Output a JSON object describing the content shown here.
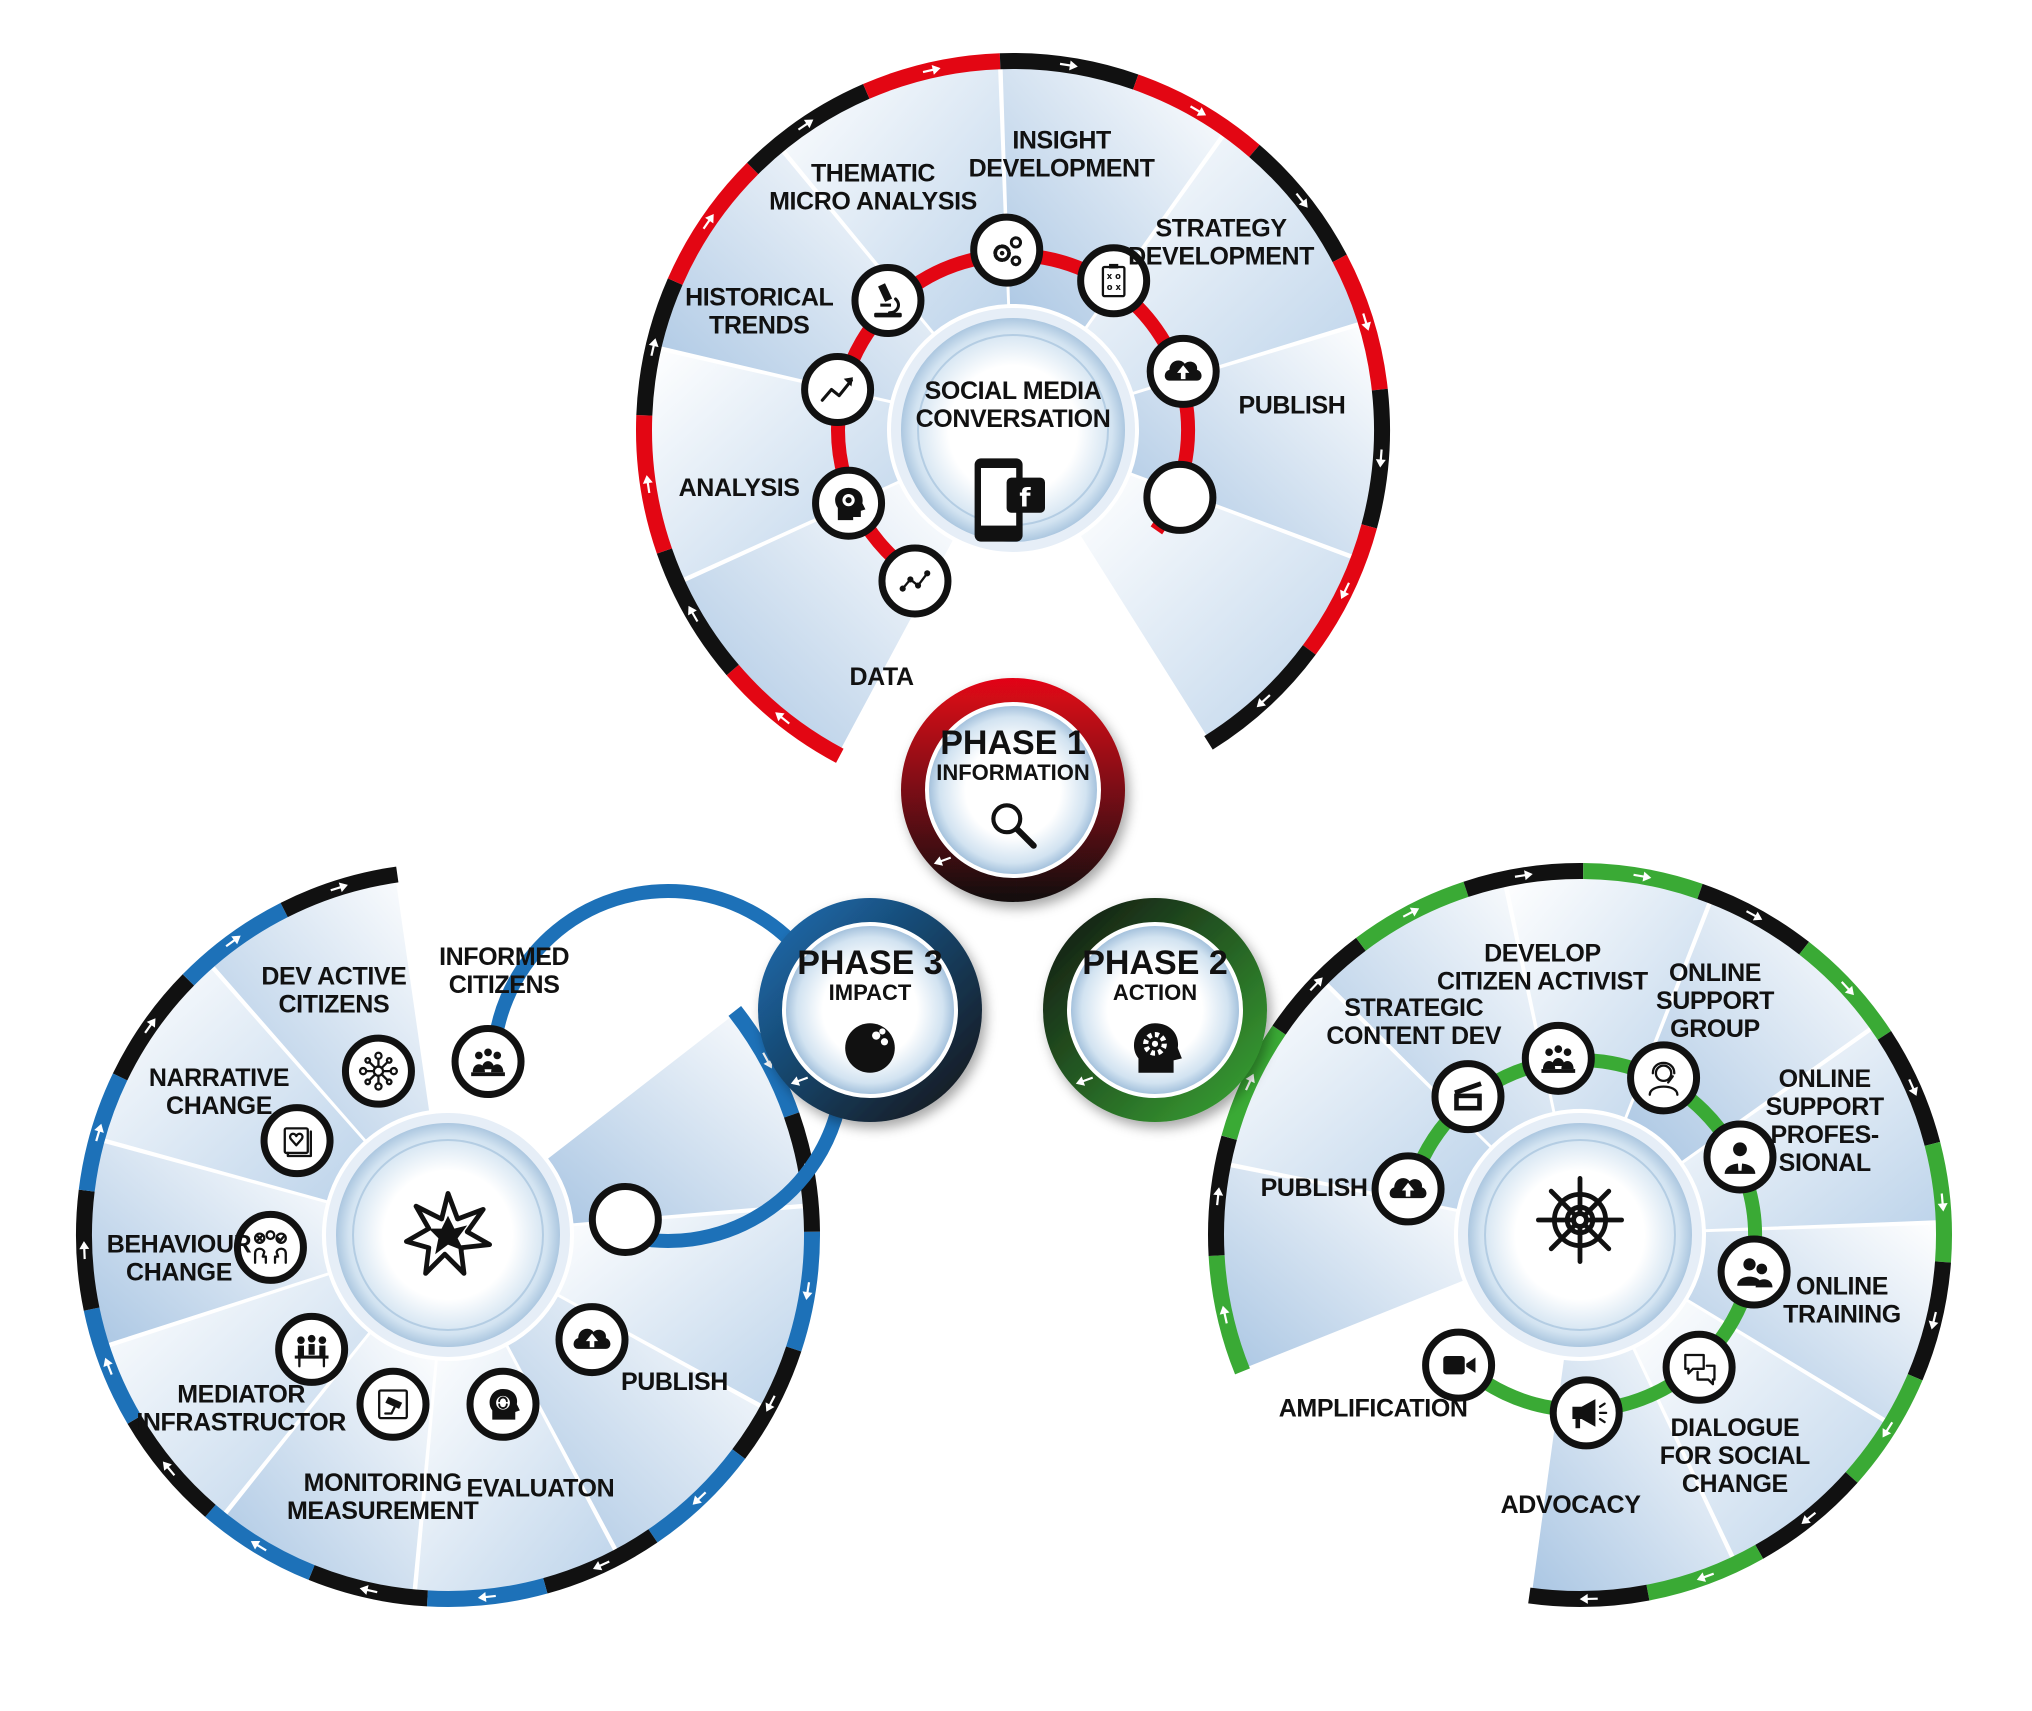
{
  "phases": [
    {
      "title": "PHASE 1",
      "subtitle": "INFORMATION",
      "icon": "magnifier-icon"
    },
    {
      "title": "PHASE 2",
      "subtitle": "ACTION",
      "icon": "head-gear-icon"
    },
    {
      "title": "PHASE 3",
      "subtitle": "IMPACT",
      "icon": "bowling-ball-icon"
    }
  ],
  "cycles": {
    "information": {
      "colors": {
        "accent": "#e30613",
        "dark": "#111111"
      },
      "center": {
        "lines": [
          "SOCIAL MEDIA",
          "CONVERSATION"
        ],
        "icon": "smartphone-facebook-icon"
      },
      "steps": [
        {
          "lines": [
            "DATA"
          ],
          "icon": "data-line-icon"
        },
        {
          "lines": [
            "ANALYSIS"
          ],
          "icon": "head-brain-icon"
        },
        {
          "lines": [
            "HISTORICAL",
            "TRENDS"
          ],
          "icon": "trend-arrow-icon"
        },
        {
          "lines": [
            "THEMATIC",
            "MICRO ANALYSIS"
          ],
          "icon": "microscope-icon"
        },
        {
          "lines": [
            "INSIGHT",
            "DEVELOPMENT"
          ],
          "icon": "gears-icon"
        },
        {
          "lines": [
            "STRATEGY",
            "DEVELOPMENT"
          ],
          "icon": "strategy-board-icon"
        },
        {
          "lines": [
            "PUBLISH"
          ],
          "icon": "cloud-upload-icon"
        },
        {
          "lines": [],
          "icon": "empty-circle-icon"
        }
      ]
    },
    "action": {
      "colors": {
        "accent": "#3aaa35",
        "dark": "#111111"
      },
      "center": {
        "lines": [],
        "icon": "ship-wheel-icon"
      },
      "steps": [
        {
          "lines": [
            "PUBLISH"
          ],
          "icon": "cloud-upload-icon"
        },
        {
          "lines": [
            "STRATEGIC",
            "CONTENT DEV"
          ],
          "icon": "clapperboard-icon"
        },
        {
          "lines": [
            "DEVELOP",
            "CITIZEN ACTIVIST"
          ],
          "icon": "group-icon"
        },
        {
          "lines": [
            "ONLINE",
            "SUPPORT",
            "GROUP"
          ],
          "icon": "headset-person-icon"
        },
        {
          "lines": [
            "ONLINE",
            "SUPPORT",
            "PROFES-",
            "SIONAL"
          ],
          "icon": "businessman-icon"
        },
        {
          "lines": [
            "ONLINE",
            "TRAINING"
          ],
          "icon": "two-people-icon"
        },
        {
          "lines": [
            "DIALOGUE",
            "FOR SOCIAL",
            "CHANGE"
          ],
          "icon": "speech-bubbles-icon"
        },
        {
          "lines": [
            "ADVOCACY"
          ],
          "icon": "megaphone-icon"
        },
        {
          "lines": [
            "AMPLIFICATION"
          ],
          "icon": "video-camera-icon"
        }
      ]
    },
    "impact": {
      "colors": {
        "accent": "#1d71b8",
        "dark": "#111111"
      },
      "center": {
        "lines": [],
        "icon": "explosion-icon"
      },
      "steps": [
        {
          "lines": [
            "INFORMED",
            "CITIZENS"
          ],
          "icon": "group-icon"
        },
        {
          "lines": [
            "DEV ACTIVE",
            "CITIZENS"
          ],
          "icon": "network-icon"
        },
        {
          "lines": [
            "NARRATIVE",
            "CHANGE"
          ],
          "icon": "heart-book-icon"
        },
        {
          "lines": [
            "BEHAVIOUR",
            "CHANGE"
          ],
          "icon": "head-choice-icon"
        },
        {
          "lines": [
            "MEDIATOR",
            "INFRASTRUCTOR"
          ],
          "icon": "meeting-table-icon"
        },
        {
          "lines": [
            "MONITORING",
            "MEASUREMENT"
          ],
          "icon": "camera-monitor-icon"
        },
        {
          "lines": [
            "EVALUATON"
          ],
          "icon": "head-refresh-icon"
        },
        {
          "lines": [
            "PUBLISH"
          ],
          "icon": "cloud-upload-icon"
        },
        {
          "lines": [],
          "icon": "empty-circle-icon"
        }
      ]
    }
  }
}
